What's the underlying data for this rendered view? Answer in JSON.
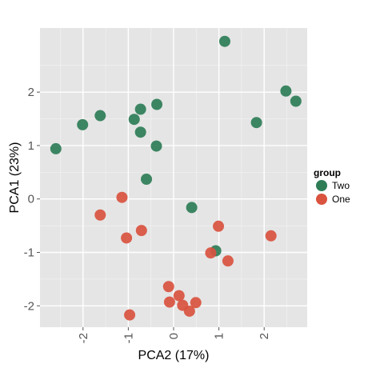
{
  "chart_data": {
    "type": "scatter",
    "xlabel": "PCA2 (17%)",
    "ylabel": "PCA1 (23%)",
    "xlim": [
      -2.95,
      2.95
    ],
    "ylim": [
      -2.4,
      3.2
    ],
    "x_ticks": [
      -2,
      -1,
      0,
      1,
      2
    ],
    "x_tick_labels": [
      "-2",
      "-1",
      "0",
      "1",
      "2"
    ],
    "y_ticks": [
      -2,
      -1,
      0,
      1,
      2
    ],
    "y_tick_labels": [
      "-2",
      "-1",
      "0",
      "1",
      "2"
    ],
    "grid": true,
    "legend_position": "right",
    "legend_title": "group",
    "series": [
      {
        "name": "Two",
        "color": "#2e7d57",
        "points": [
          {
            "x": 1.13,
            "y": 2.95
          },
          {
            "x": 2.48,
            "y": 2.02
          },
          {
            "x": 2.7,
            "y": 1.83
          },
          {
            "x": -0.37,
            "y": 1.77
          },
          {
            "x": -0.73,
            "y": 1.68
          },
          {
            "x": -1.62,
            "y": 1.56
          },
          {
            "x": -0.87,
            "y": 1.49
          },
          {
            "x": -2.01,
            "y": 1.39
          },
          {
            "x": 1.83,
            "y": 1.43
          },
          {
            "x": -0.73,
            "y": 1.25
          },
          {
            "x": -0.38,
            "y": 0.99
          },
          {
            "x": -2.6,
            "y": 0.94
          },
          {
            "x": -0.6,
            "y": 0.37
          },
          {
            "x": 0.4,
            "y": -0.16
          },
          {
            "x": 0.93,
            "y": -0.97
          }
        ]
      },
      {
        "name": "One",
        "color": "#d9533f",
        "points": [
          {
            "x": -1.14,
            "y": 0.03
          },
          {
            "x": -1.62,
            "y": -0.3
          },
          {
            "x": 0.99,
            "y": -0.51
          },
          {
            "x": -0.71,
            "y": -0.59
          },
          {
            "x": -1.04,
            "y": -0.73
          },
          {
            "x": 2.15,
            "y": -0.69
          },
          {
            "x": 0.82,
            "y": -1.01
          },
          {
            "x": 1.2,
            "y": -1.16
          },
          {
            "x": -0.11,
            "y": -1.64
          },
          {
            "x": 0.12,
            "y": -1.81
          },
          {
            "x": -0.09,
            "y": -1.93
          },
          {
            "x": 0.2,
            "y": -1.99
          },
          {
            "x": 0.49,
            "y": -1.94
          },
          {
            "x": 0.35,
            "y": -2.1
          },
          {
            "x": -0.97,
            "y": -2.17
          }
        ]
      }
    ]
  }
}
